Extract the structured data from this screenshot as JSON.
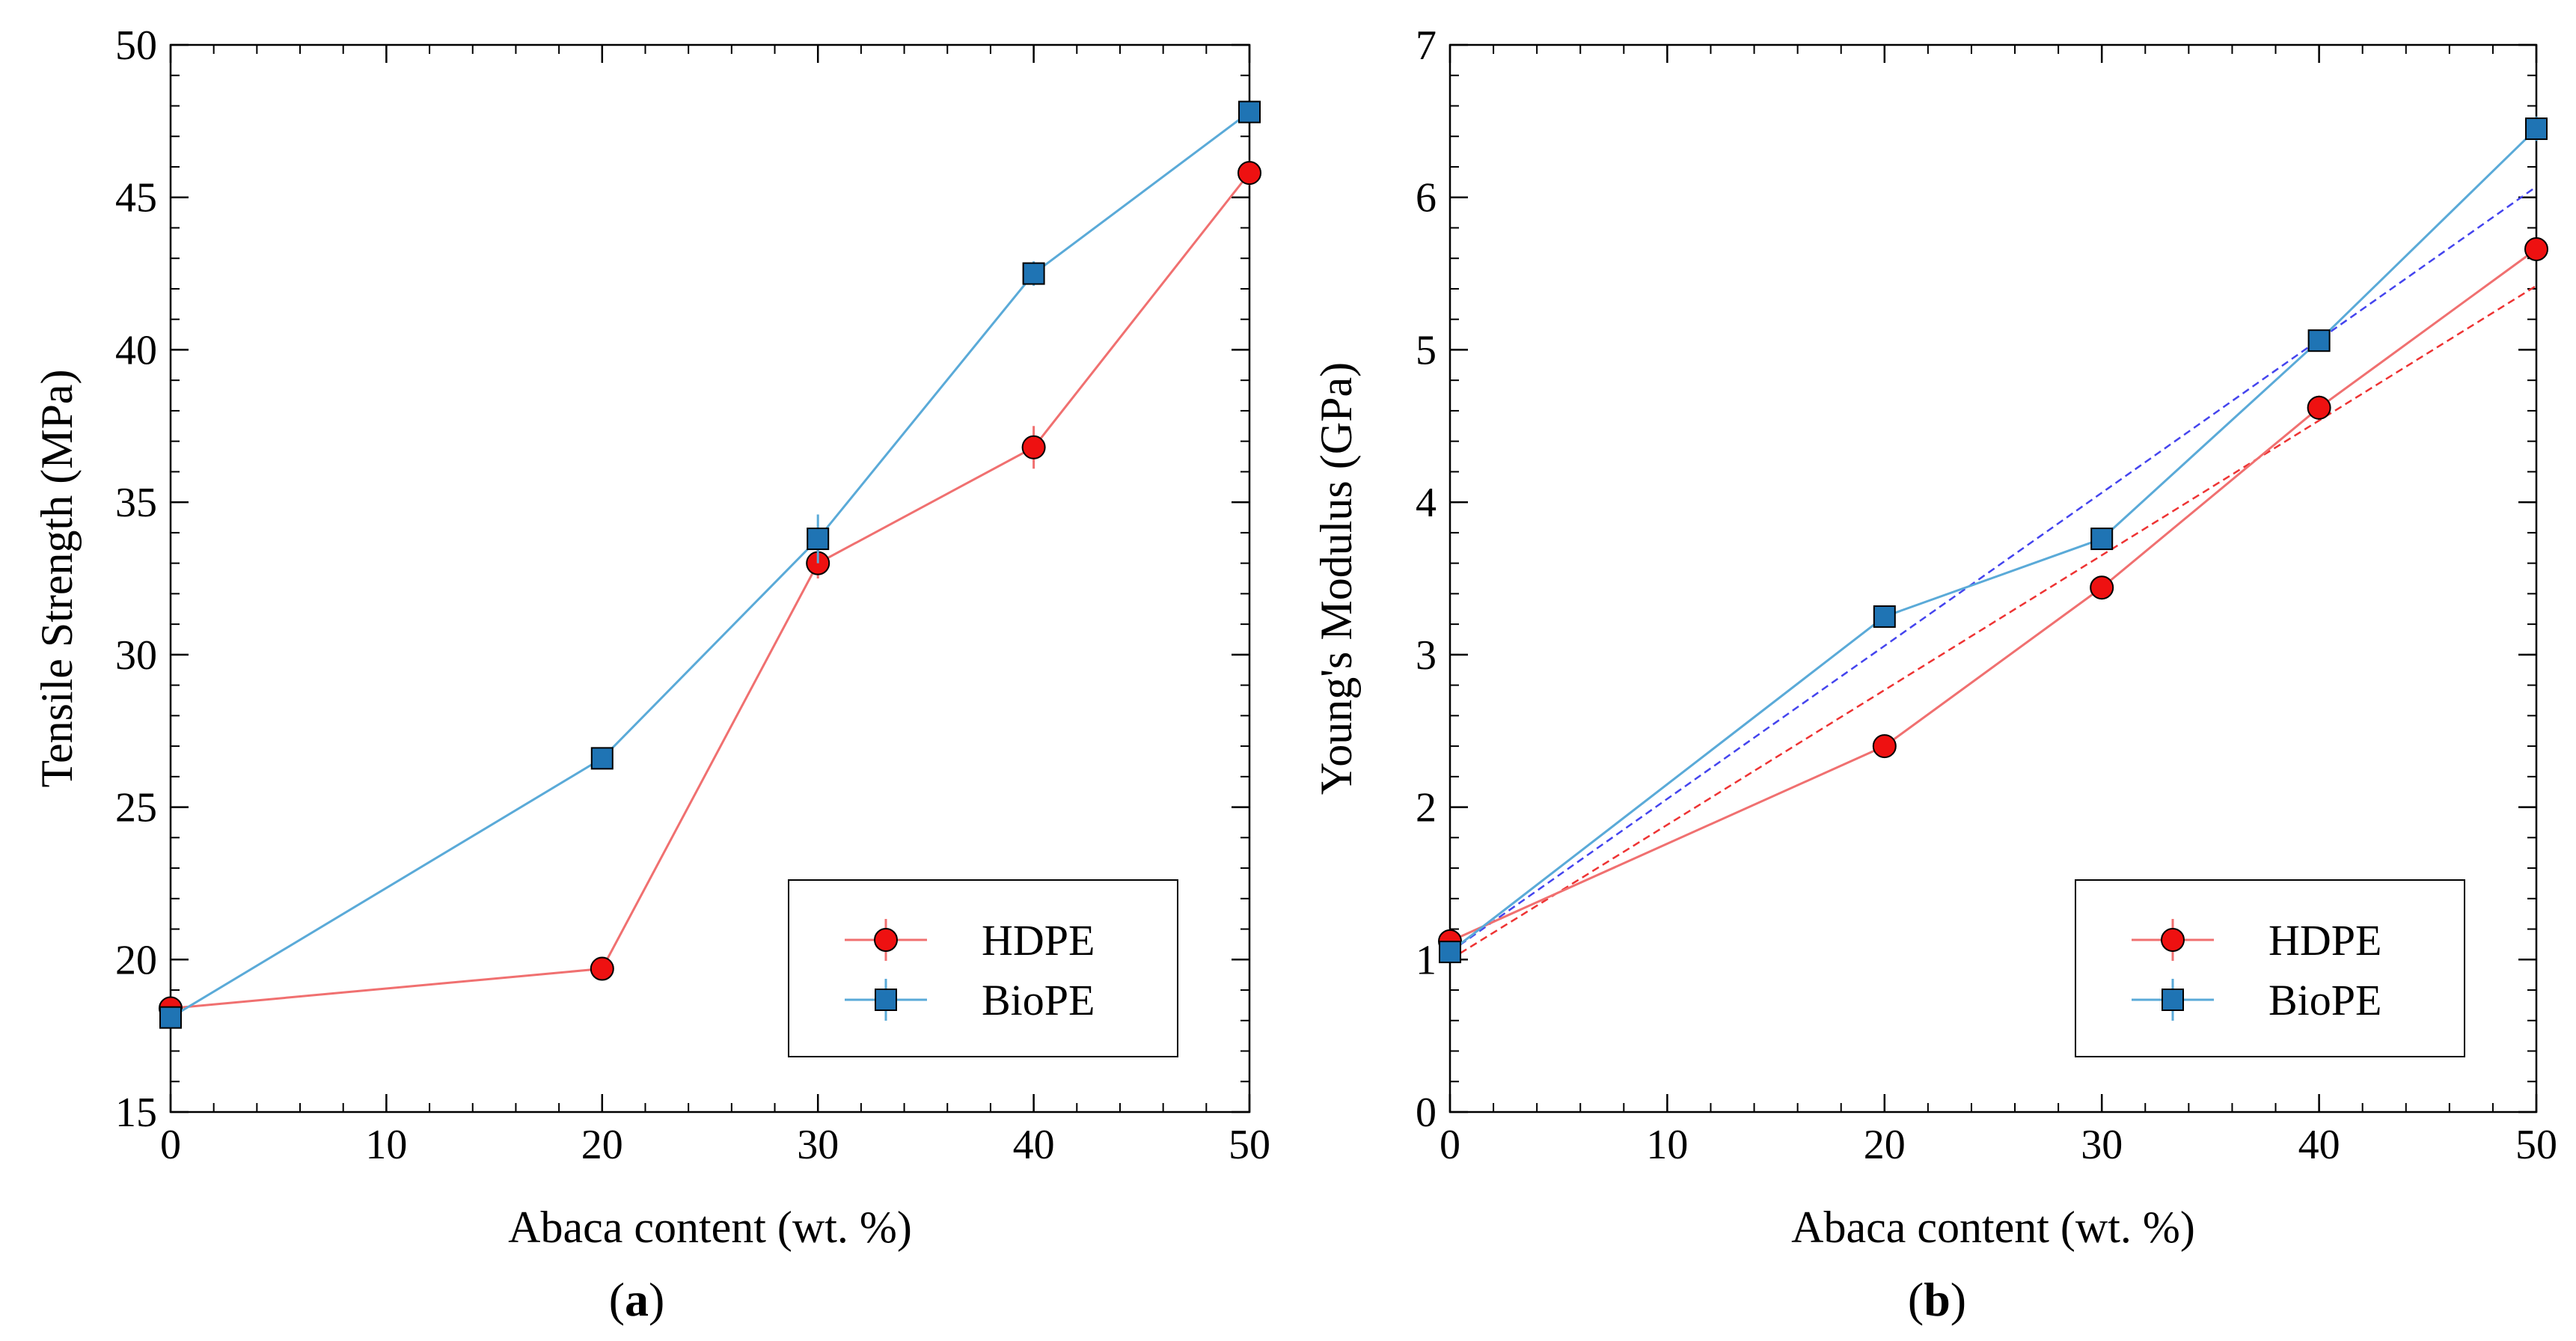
{
  "colors": {
    "hdpe_fill": "#ee1111",
    "hdpe_line": "#f07070",
    "hdpe_fit": "#ee3333",
    "biope_fill": "#1f74b4",
    "biope_line": "#5aaad8",
    "biope_fit": "#4444ee"
  },
  "chart_data": [
    {
      "type": "line",
      "panel": "a",
      "caption": "a",
      "xlabel": "Abaca content (wt. %)",
      "ylabel": "Tensile Strength (MPa)",
      "xlim": [
        0,
        50
      ],
      "ylim": [
        15,
        50
      ],
      "xticks": [
        0,
        10,
        20,
        30,
        40,
        50
      ],
      "yticks": [
        15,
        20,
        25,
        30,
        35,
        40,
        45,
        50
      ],
      "x_minor_step": 2,
      "y_minor_step": 1,
      "legend_position": "bottom-right",
      "series": [
        {
          "name": "HDPE",
          "marker": "circle",
          "x": [
            0,
            20,
            30,
            40,
            50
          ],
          "y": [
            18.4,
            19.7,
            33.0,
            36.8,
            45.8
          ],
          "err": [
            0.2,
            0.3,
            0.5,
            0.7,
            0.4
          ]
        },
        {
          "name": "BioPE",
          "marker": "square",
          "x": [
            0,
            20,
            30,
            40,
            50
          ],
          "y": [
            18.1,
            26.6,
            33.8,
            42.5,
            47.8
          ],
          "err": [
            0.3,
            0.3,
            0.8,
            0.4,
            0.3
          ]
        }
      ]
    },
    {
      "type": "line",
      "panel": "b",
      "caption": "b",
      "xlabel": "Abaca content (wt. %)",
      "ylabel": "Young's Modulus (GPa)",
      "xlim": [
        0,
        50
      ],
      "ylim": [
        0,
        7
      ],
      "xticks": [
        0,
        10,
        20,
        30,
        40,
        50
      ],
      "yticks": [
        0,
        1,
        2,
        3,
        4,
        5,
        6,
        7
      ],
      "x_minor_step": 2,
      "y_minor_step": 0.2,
      "legend_position": "bottom-right",
      "series": [
        {
          "name": "HDPE",
          "marker": "circle",
          "x": [
            0,
            20,
            30,
            40,
            50
          ],
          "y": [
            1.12,
            2.4,
            3.44,
            4.62,
            5.66
          ],
          "err": [
            0.03,
            0.05,
            0.06,
            0.08,
            0.07
          ]
        },
        {
          "name": "BioPE",
          "marker": "square",
          "x": [
            0,
            20,
            30,
            40,
            50
          ],
          "y": [
            1.05,
            3.25,
            3.76,
            5.06,
            6.45
          ],
          "err": [
            0.04,
            0.05,
            0.05,
            0.06,
            0.08
          ]
        }
      ],
      "fit_lines": [
        {
          "name": "HDPE fit",
          "x": [
            0,
            50
          ],
          "y": [
            1.0,
            5.42
          ]
        },
        {
          "name": "BioPE fit",
          "x": [
            0,
            50
          ],
          "y": [
            1.05,
            6.07
          ]
        }
      ]
    }
  ]
}
